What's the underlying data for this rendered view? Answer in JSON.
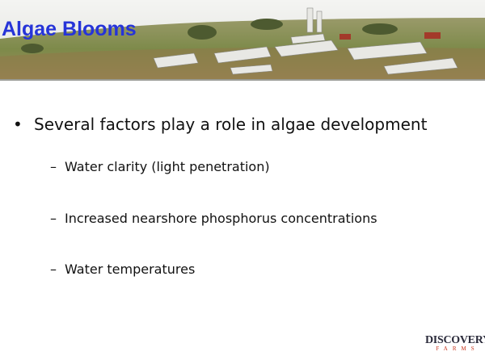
{
  "header": {
    "title": "Algae Blooms"
  },
  "bullets": [
    {
      "text": "Several factors play a role in algae development",
      "sub": [
        "Water clarity (light penetration)",
        "Increased nearshore phosphorus concentrations",
        "Water temperatures"
      ]
    }
  ],
  "logo": {
    "name": "DISCOVERY",
    "sub": "FARMS"
  }
}
